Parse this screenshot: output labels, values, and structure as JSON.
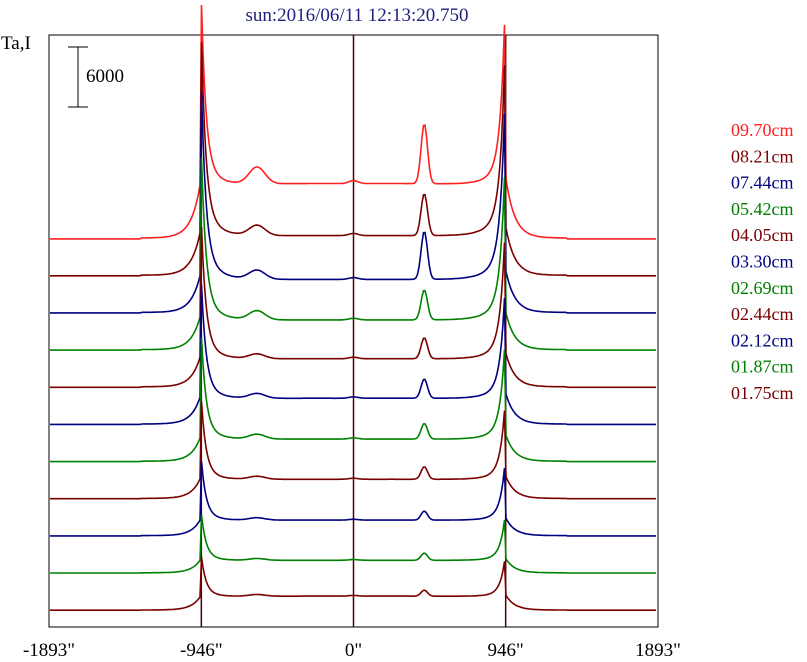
{
  "chart_data": {
    "type": "line",
    "title": "sun:2016/06/11 12:13:20.750",
    "ylabel": "Ta,I",
    "scale_bar_label": "6000",
    "scale_bar_value": 6000,
    "x_ticks": [
      {
        "value": -1893,
        "label": "-1893\""
      },
      {
        "value": -946,
        "label": "-946\""
      },
      {
        "value": 0,
        "label": "0\""
      },
      {
        "value": 946,
        "label": "946\""
      },
      {
        "value": 1893,
        "label": "1893\""
      }
    ],
    "xlim": [
      -1893,
      1893
    ],
    "vertical_lines": [
      -946,
      0,
      946
    ],
    "series": [
      {
        "name": "09.70cm",
        "color": "#ff2020",
        "limb_peak": 45000,
        "disk_level": 16500,
        "left_feature": 2800,
        "right_feature": 10000
      },
      {
        "name": "08.21cm",
        "color": "#7a0000",
        "limb_peak": 42000,
        "disk_level": 12000,
        "left_feature": 1700,
        "right_feature": 7000
      },
      {
        "name": "07.44cm",
        "color": "#000080",
        "limb_peak": 39000,
        "disk_level": 10000,
        "left_feature": 1500,
        "right_feature": 8000
      },
      {
        "name": "05.42cm",
        "color": "#008000",
        "limb_peak": 34000,
        "disk_level": 9000,
        "left_feature": 1500,
        "right_feature": 5000
      },
      {
        "name": "04.05cm",
        "color": "#7a0000",
        "limb_peak": 29000,
        "disk_level": 8500,
        "left_feature": 800,
        "right_feature": 3500
      },
      {
        "name": "03.30cm",
        "color": "#000080",
        "limb_peak": 25500,
        "disk_level": 7800,
        "left_feature": 800,
        "right_feature": 3200
      },
      {
        "name": "02.69cm",
        "color": "#008000",
        "limb_peak": 22500,
        "disk_level": 6700,
        "left_feature": 800,
        "right_feature": 2600
      },
      {
        "name": "02.44cm",
        "color": "#7a0000",
        "limb_peak": 18000,
        "disk_level": 5800,
        "left_feature": 500,
        "right_feature": 2100
      },
      {
        "name": "02.12cm",
        "color": "#000080",
        "limb_peak": 14000,
        "disk_level": 4700,
        "left_feature": 400,
        "right_feature": 1500
      },
      {
        "name": "01.87cm",
        "color": "#008000",
        "limb_peak": 11000,
        "disk_level": 3800,
        "left_feature": 300,
        "right_feature": 1200
      },
      {
        "name": "01.75cm",
        "color": "#7a0000",
        "limb_peak": 10500,
        "disk_level": 4200,
        "left_feature": 300,
        "right_feature": 1000
      }
    ],
    "grid": false,
    "legend_position": "right"
  }
}
